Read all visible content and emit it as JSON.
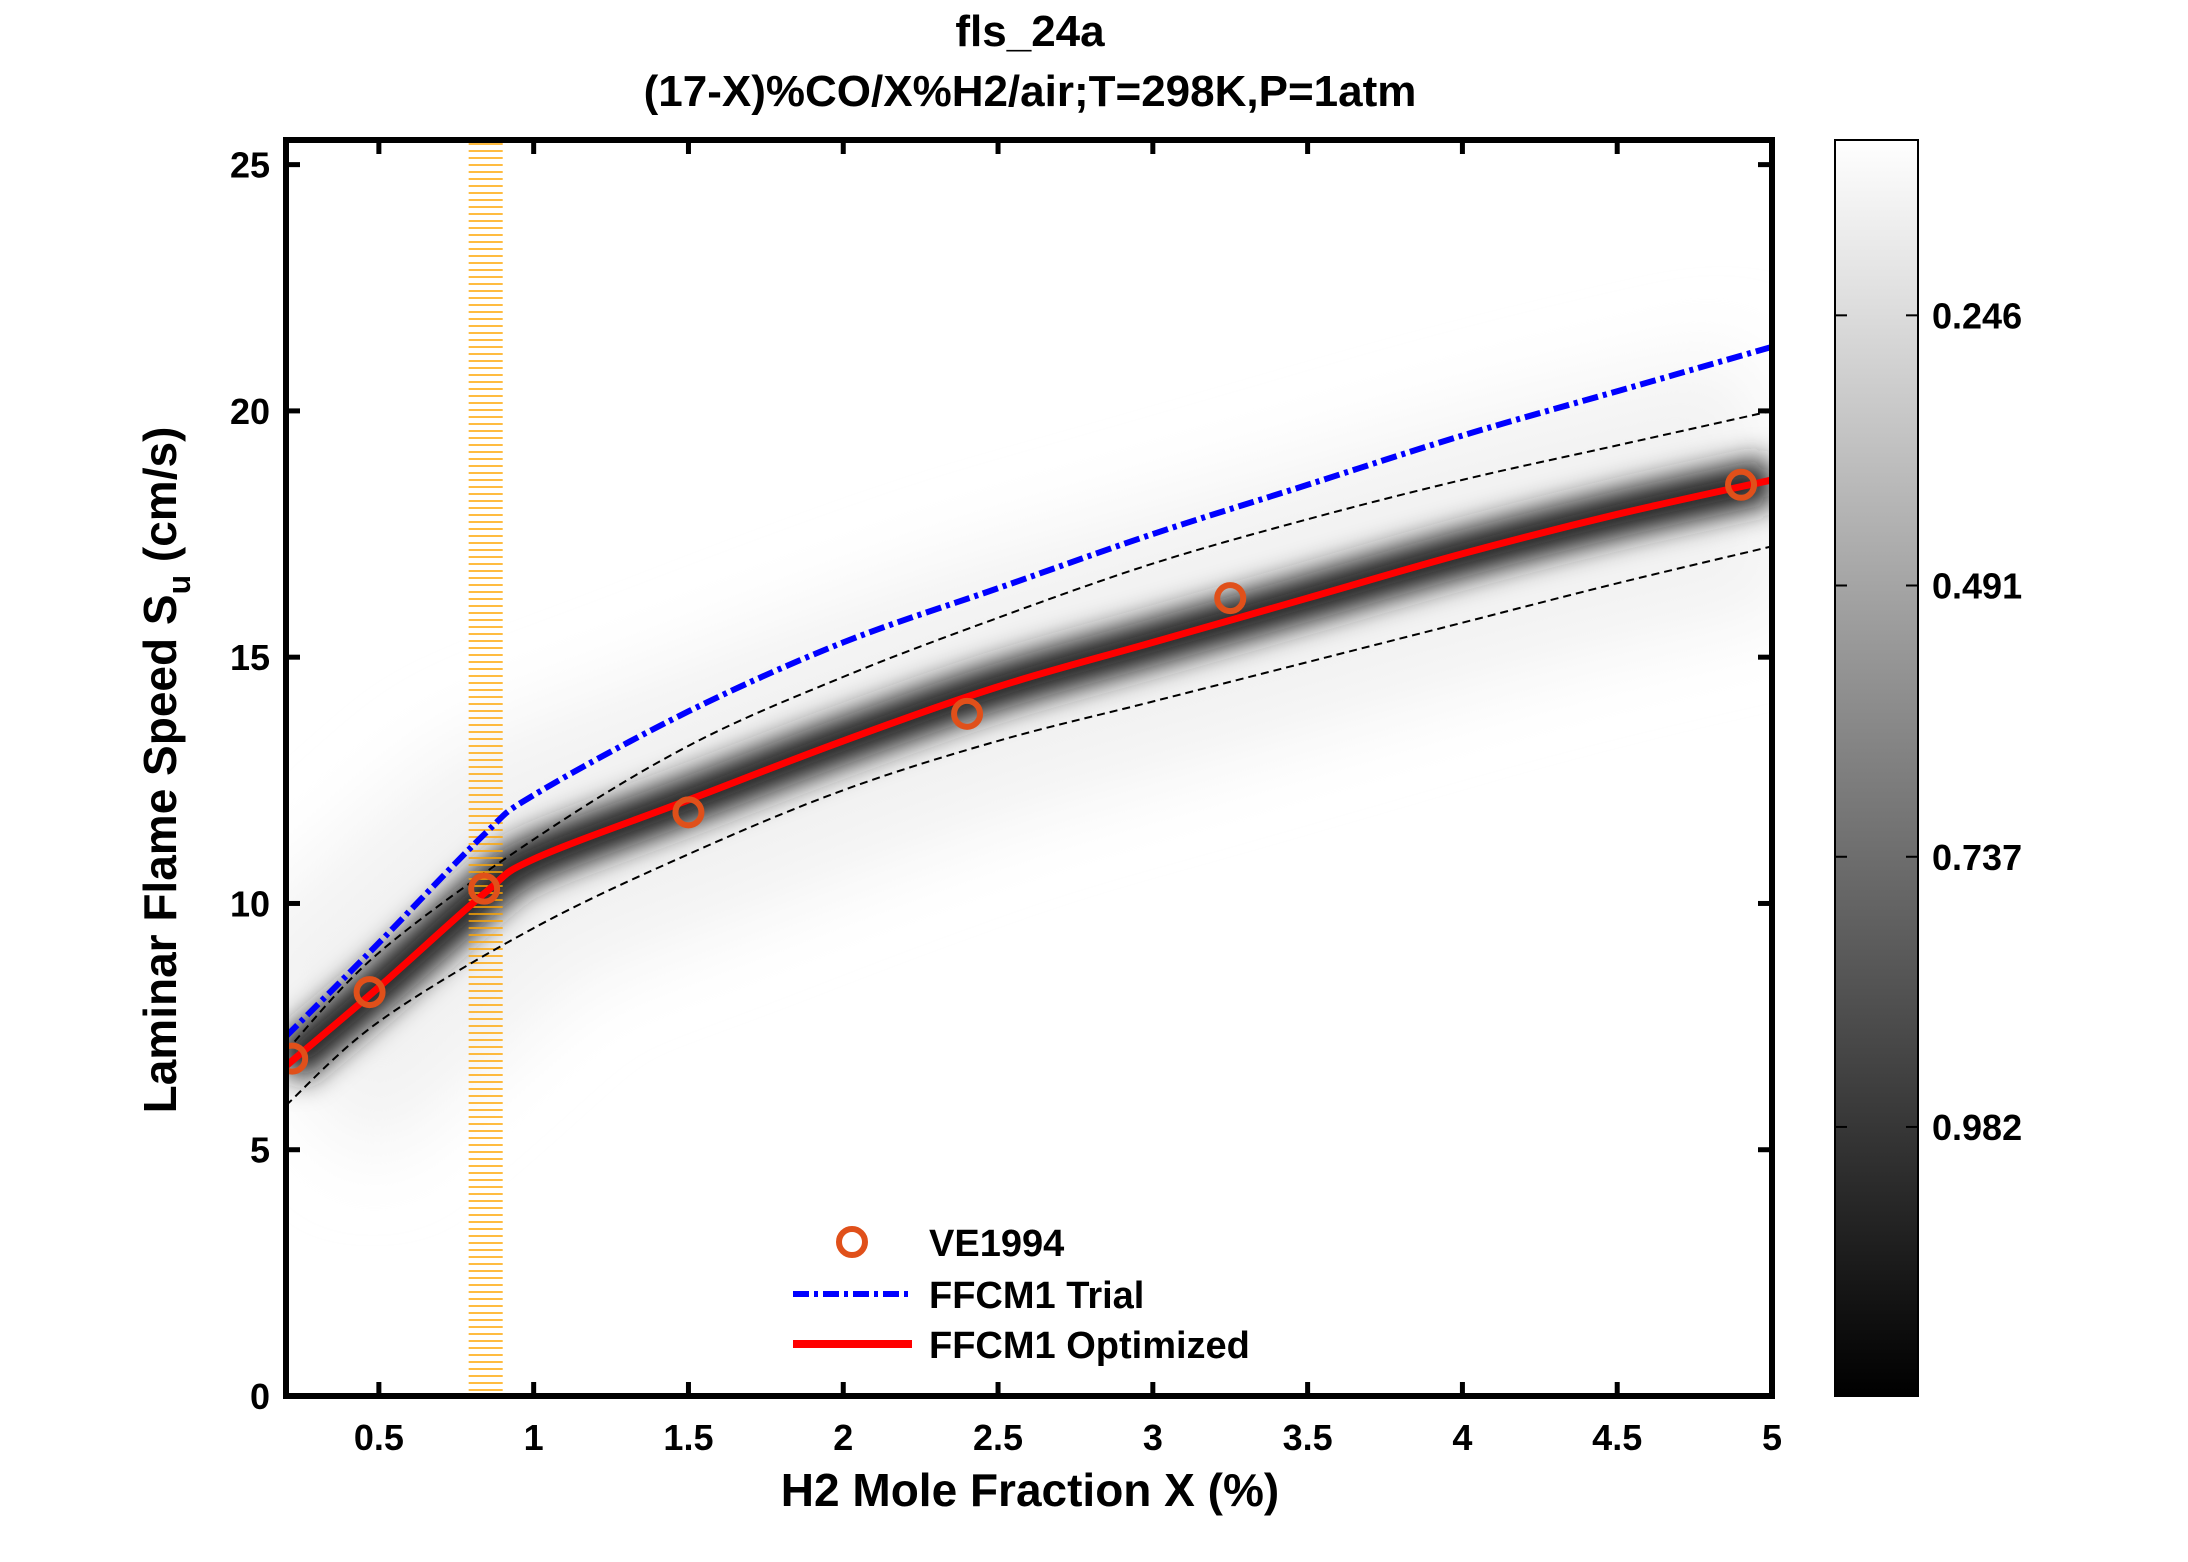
{
  "chart_data": {
    "type": "line",
    "title": "fls_24a",
    "subtitle": "(17-X)%CO/X%H2/air;T=298K,P=1atm",
    "xlabel": "H2 Mole Fraction X (%)",
    "ylabel_main": "Laminar Flame Speed S",
    "ylabel_sub": "u",
    "ylabel_tail": " (cm/s)",
    "xlim": [
      0.2,
      5
    ],
    "ylim": [
      0,
      25.5
    ],
    "xticks": [
      0.5,
      1,
      1.5,
      2,
      2.5,
      3,
      3.5,
      4,
      4.5,
      5
    ],
    "xtick_labels": [
      "0.5",
      "1",
      "1.5",
      "2",
      "2.5",
      "3",
      "3.5",
      "4",
      "4.5",
      "5"
    ],
    "yticks": [
      0,
      5,
      10,
      15,
      20,
      25
    ],
    "ytick_labels": [
      "0",
      "5",
      "10",
      "15",
      "20",
      "25"
    ],
    "grid": false,
    "legend_placement": "bottom-center",
    "highlight_band_x": [
      0.79,
      0.9
    ],
    "series": [
      {
        "name": "VE1994",
        "kind": "scatter",
        "color": "#e0501a",
        "x": [
          0.22,
          0.47,
          0.84,
          1.5,
          2.4,
          3.25,
          4.9
        ],
        "y": [
          6.85,
          8.2,
          10.3,
          11.85,
          13.85,
          16.2,
          18.5
        ]
      },
      {
        "name": "FFCM1 Trial",
        "kind": "dashdot",
        "color": "#0000ff",
        "x": [
          0.2,
          0.5,
          0.84,
          1,
          1.5,
          2,
          2.5,
          3,
          3.5,
          4,
          4.5,
          5
        ],
        "y": [
          7.3,
          9.2,
          11.4,
          12.2,
          13.9,
          15.3,
          16.4,
          17.5,
          18.5,
          19.5,
          20.4,
          21.3
        ]
      },
      {
        "name": "FFCM1 Optimized",
        "kind": "solid",
        "color": "#ff0000",
        "x": [
          0.2,
          0.5,
          0.84,
          1,
          1.5,
          2,
          2.5,
          3,
          3.5,
          4,
          4.5,
          5
        ],
        "y": [
          6.7,
          8.3,
          10.2,
          10.9,
          12.1,
          13.3,
          14.4,
          15.3,
          16.2,
          17.1,
          17.9,
          18.6
        ]
      }
    ],
    "uncertainty_bounds": {
      "x": [
        0.2,
        0.5,
        1,
        1.5,
        2,
        2.5,
        3,
        3.5,
        4,
        4.5,
        5
      ],
      "upper": [
        7.0,
        9.0,
        11.3,
        13.2,
        14.6,
        15.8,
        16.9,
        17.8,
        18.6,
        19.3,
        20.0
      ],
      "lower": [
        5.9,
        7.6,
        9.5,
        11.0,
        12.3,
        13.3,
        14.1,
        14.9,
        15.7,
        16.5,
        17.25
      ]
    },
    "colorbar": {
      "colormap": "gray",
      "range": [
        0.087,
        1.226
      ],
      "reversed": true,
      "ticks": [
        0.246,
        0.491,
        0.737,
        0.982
      ],
      "tick_labels": [
        "0.246",
        "0.491",
        "0.737",
        "0.982"
      ]
    }
  }
}
